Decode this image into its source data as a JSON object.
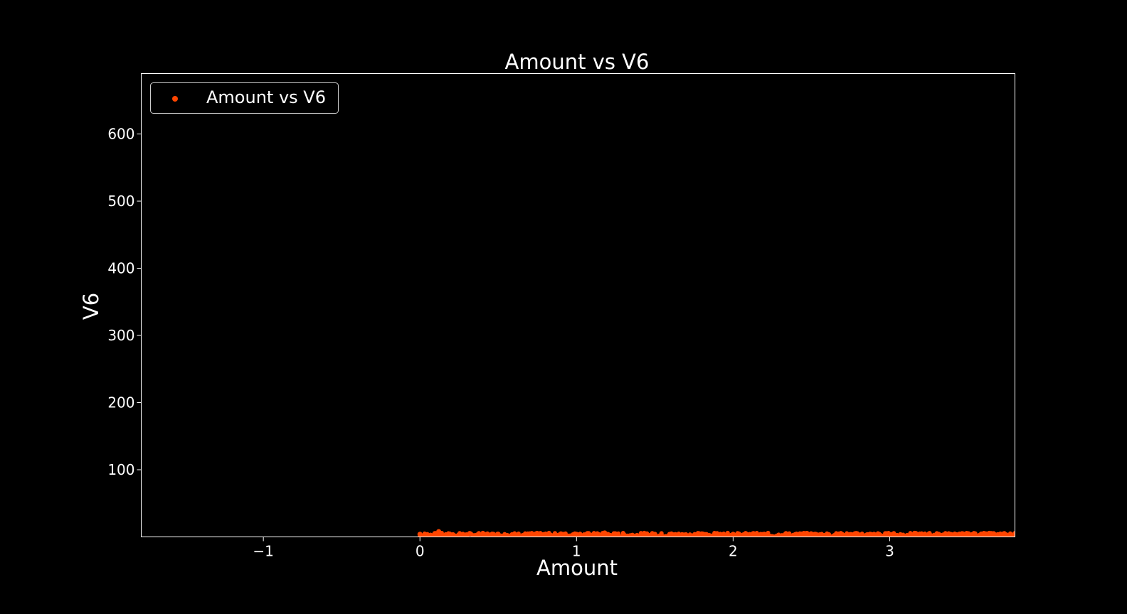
{
  "chart_data": {
    "type": "scatter",
    "title": "Amount vs V6",
    "xlabel": "Amount",
    "ylabel": "V6",
    "xlim": [
      -1.78,
      3.8
    ],
    "ylim": [
      0,
      690
    ],
    "xticks": [
      -1,
      0,
      1,
      2,
      3
    ],
    "xtick_labels": [
      "−1",
      "0",
      "1",
      "2",
      "3"
    ],
    "yticks": [
      100,
      200,
      300,
      400,
      500,
      600
    ],
    "ytick_labels": [
      "100",
      "200",
      "300",
      "400",
      "500",
      "600"
    ],
    "grid": false,
    "legend_position": "top-left",
    "series": [
      {
        "name": "Amount vs V6",
        "color": "#ff4500",
        "x_range": [
          0,
          3.8
        ],
        "y_typical_range": [
          0,
          6
        ],
        "points": [
          {
            "x": 0.0,
            "y": 4
          },
          {
            "x": 0.05,
            "y": 3
          },
          {
            "x": 0.12,
            "y": 8
          },
          {
            "x": 0.2,
            "y": 3
          },
          {
            "x": 0.35,
            "y": 2
          },
          {
            "x": 0.5,
            "y": 4
          },
          {
            "x": 0.75,
            "y": 5
          },
          {
            "x": 1.0,
            "y": 4
          },
          {
            "x": 1.18,
            "y": 6
          },
          {
            "x": 1.5,
            "y": 4
          },
          {
            "x": 2.0,
            "y": 4
          },
          {
            "x": 2.2,
            "y": 4
          },
          {
            "x": 2.5,
            "y": 3
          },
          {
            "x": 3.0,
            "y": 3
          },
          {
            "x": 3.5,
            "y": 4
          },
          {
            "x": 3.65,
            "y": 5
          },
          {
            "x": 3.8,
            "y": 5
          }
        ]
      }
    ]
  }
}
